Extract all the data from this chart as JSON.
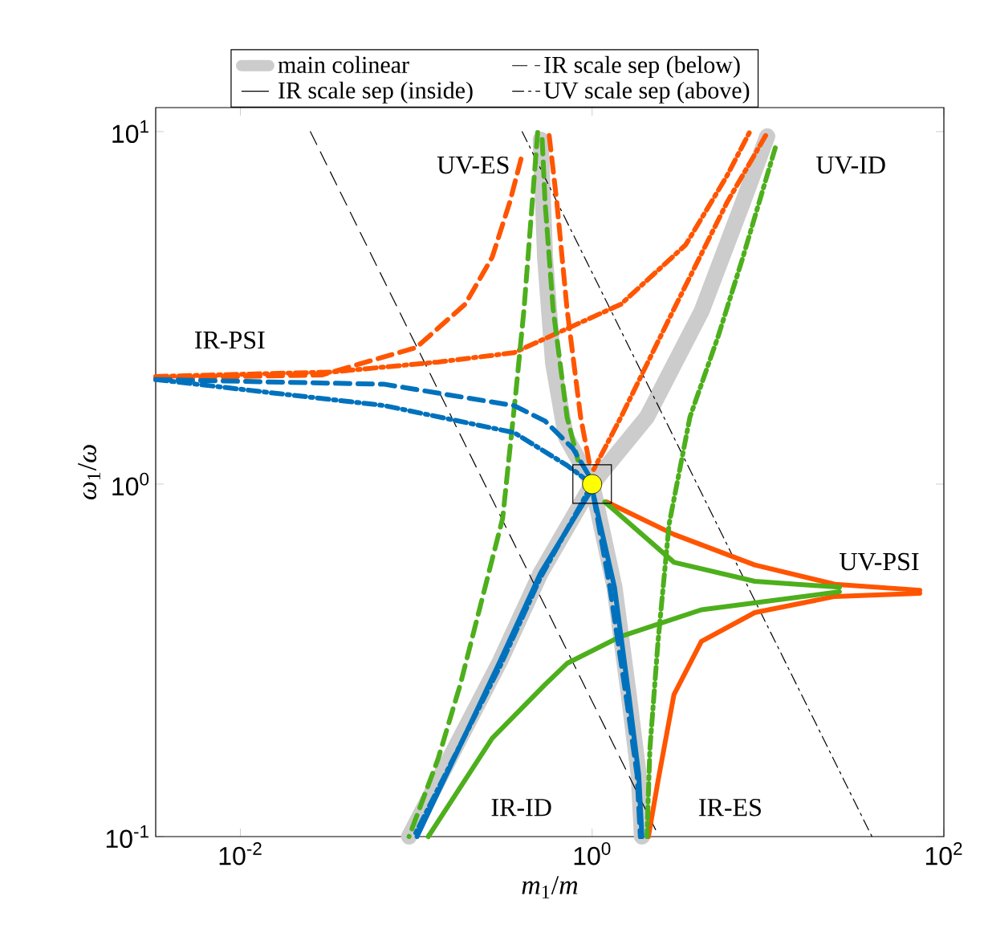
{
  "chart_data": {
    "type": "line",
    "xlabel": "*m*$_{1}$/*m*",
    "ylabel": "*ω*$_{1}$/*ω*",
    "log": "xy",
    "legend": "top",
    "xlim": [
      0.0033,
      100
    ],
    "ylim": [
      0.1,
      11.7
    ],
    "xticks": [
      {
        "value": 0.01,
        "label": "10$^{-2}$"
      },
      {
        "value": 1,
        "label": "10$^{0}$"
      },
      {
        "value": 100,
        "label": "10$^{2}$"
      }
    ],
    "yticks": [
      {
        "value": 0.1,
        "label": "10$^{-1}$"
      },
      {
        "value": 1,
        "label": "10$^{0}$"
      },
      {
        "value": 10,
        "label": "10$^{1}$"
      }
    ],
    "annotations": [
      "IR scale sep (inside)",
      "UV-ES",
      "UV-ID",
      "IR-PSI",
      "UV-PSI",
      "IR-ID",
      "IR-ES"
    ],
    "series": [
      {
        "name": "main colinear",
        "color": "#cccccc",
        "line_style": "solid",
        "x": [
          0.51,
          0.54,
          0.6,
          0.71,
          1,
          1.34,
          1.62,
          1.84,
          1.92,
          null,
          9.9,
          7.2,
          4.2,
          2.05,
          1,
          0.51,
          0.3,
          0.091
        ],
        "values": [
          9.5,
          4.4,
          2.2,
          1.36,
          1,
          0.51,
          0.25,
          0.15,
          0.1,
          null,
          9.7,
          6.3,
          3.1,
          1.55,
          1,
          0.56,
          0.315,
          0.1
        ]
      },
      {
        "name": "IR scale sep (below)",
        "color": "#000000",
        "line_style": "dashed",
        "x": [
          0.025,
          2.4
        ],
        "values": [
          10,
          0.1
        ]
      },
      {
        "name": "UV scale sep (above)",
        "color": "#000000",
        "line_style": "dashdot",
        "x": [
          0.4,
          39
        ],
        "values": [
          10,
          0.1
        ]
      },
      {
        "color": "#ff5500",
        "line_style": "dashed",
        "x": [
          0.0033,
          0.029,
          0.1,
          0.19,
          0.27,
          0.34,
          0.4
        ],
        "values": [
          2.0,
          2.04,
          2.44,
          3.24,
          4.4,
          6.3,
          8.6
        ]
      },
      {
        "color": "#ff5500",
        "line_style": "dashed",
        "x": [
          0.57,
          0.63,
          0.72,
          0.86,
          0.98
        ],
        "values": [
          9.75,
          6.3,
          3.14,
          1.55,
          1.1
        ]
      },
      {
        "color": "#ff5500",
        "line_style": "dashdot",
        "x": [
          0.0033,
          0.033,
          0.133,
          0.36,
          1.46,
          3.4,
          5.85,
          7.85
        ],
        "values": [
          2.02,
          2.08,
          2.22,
          2.36,
          3.24,
          4.77,
          7.5,
          9.95
        ]
      },
      {
        "color": "#ff5500",
        "line_style": "dashdot",
        "x": [
          9.7,
          5.85,
          2.92,
          1.46,
          1.02
        ],
        "values": [
          9.75,
          6.3,
          3.14,
          1.55,
          1.1
        ]
      },
      {
        "color": "#ff5500",
        "line_style": "solid",
        "x": [
          1.21,
          2.92,
          8.4,
          24,
          73
        ],
        "values": [
          0.89,
          0.72,
          0.59,
          0.52,
          0.5
        ]
      },
      {
        "color": "#ff5500",
        "line_style": "solid",
        "x": [
          2.09,
          2.37,
          2.92,
          4.18,
          8.4,
          24,
          73
        ],
        "values": [
          0.1,
          0.144,
          0.253,
          0.358,
          0.432,
          0.48,
          0.49
        ]
      },
      {
        "color": "#4daf1c",
        "line_style": "dashed",
        "x": [
          0.49,
          0.41,
          0.37,
          0.31,
          0.178,
          0.133,
          0.091
        ],
        "values": [
          9.95,
          3.14,
          1.86,
          0.8,
          0.27,
          0.166,
          0.1
        ]
      },
      {
        "color": "#4daf1c",
        "line_style": "dashed",
        "x": [
          0.52,
          0.54,
          0.6,
          0.72,
          0.83
        ],
        "values": [
          9.5,
          6.3,
          3.14,
          1.55,
          1.17
        ]
      },
      {
        "color": "#4daf1c",
        "line_style": "dashdot",
        "x": [
          11,
          7.2,
          5.2,
          3.6,
          2.74,
          2.37,
          2.13,
          2.05
        ],
        "values": [
          9.0,
          4.4,
          2.62,
          1.55,
          0.77,
          0.358,
          0.177,
          0.1
        ]
      },
      {
        "color": "#4daf1c",
        "line_style": "solid",
        "x": [
          1.18,
          2.92,
          8.4,
          25.5
        ],
        "values": [
          0.89,
          0.6,
          0.53,
          0.51
        ]
      },
      {
        "color": "#4daf1c",
        "line_style": "solid",
        "x": [
          0.117,
          0.27,
          0.54,
          0.72,
          1.46,
          4.18,
          25.5
        ],
        "values": [
          0.1,
          0.19,
          0.27,
          0.31,
          0.37,
          0.44,
          0.495
        ]
      },
      {
        "color": "#0072bd",
        "line_style": "solid",
        "x": [
          0.101,
          0.3,
          0.51,
          1,
          1.34,
          1.62,
          1.84,
          1.92
        ],
        "values": [
          0.1,
          0.315,
          0.56,
          0.97,
          0.51,
          0.25,
          0.15,
          0.1
        ]
      },
      {
        "color": "#0072bd",
        "line_style": "dashed",
        "x": [
          0.0033,
          0.066,
          0.36,
          0.54,
          0.78,
          1
        ],
        "values": [
          1.98,
          1.92,
          1.67,
          1.51,
          1.26,
          1.02
        ]
      },
      {
        "color": "#0072bd",
        "line_style": "dashdot",
        "x": [
          0.0033,
          0.066,
          0.36,
          0.72,
          1
        ],
        "values": [
          1.98,
          1.67,
          1.4,
          1.13,
          1
        ]
      },
      {
        "color": "#0072bd",
        "line_style": "dashed",
        "x": [
          1.02,
          1.26,
          1.56,
          1.8,
          1.88
        ],
        "values": [
          0.92,
          0.51,
          0.25,
          0.15,
          0.1
        ]
      },
      {
        "color": "#0072bd",
        "line_style": "dashdot",
        "x": [
          1,
          0.51,
          0.3,
          0.097
        ],
        "values": [
          1,
          0.545,
          0.305,
          0.1
        ]
      },
      {
        "type": "scatter",
        "color": "#ffff00",
        "marker": "circle",
        "x": [
          1
        ],
        "values": [
          1
        ]
      }
    ]
  }
}
